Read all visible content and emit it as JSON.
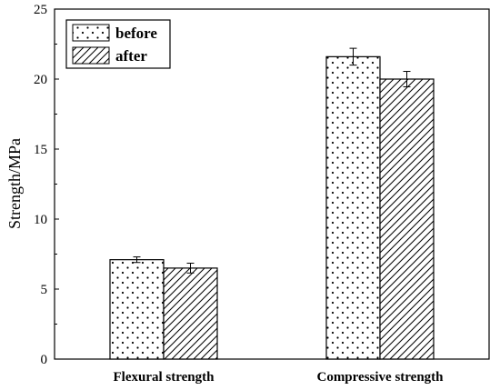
{
  "chart_data": {
    "type": "bar",
    "title": "",
    "xlabel": "",
    "ylabel": "Strength/MPa",
    "ylim": [
      0,
      25
    ],
    "yticks": [
      0,
      5,
      10,
      15,
      20,
      25
    ],
    "categories": [
      "Flexural strength",
      "Compressive strength"
    ],
    "series": [
      {
        "name": "before",
        "values": [
          7.1,
          21.6
        ],
        "errors": [
          0.2,
          0.6
        ],
        "pattern": "dots"
      },
      {
        "name": "after",
        "values": [
          6.5,
          20.0
        ],
        "errors": [
          0.35,
          0.55
        ],
        "pattern": "hatch"
      }
    ],
    "grid": false,
    "legend_position": "top-left",
    "colors": {
      "axis": "#000000",
      "bar_fill": "#ffffff",
      "pattern": "#000000"
    }
  }
}
